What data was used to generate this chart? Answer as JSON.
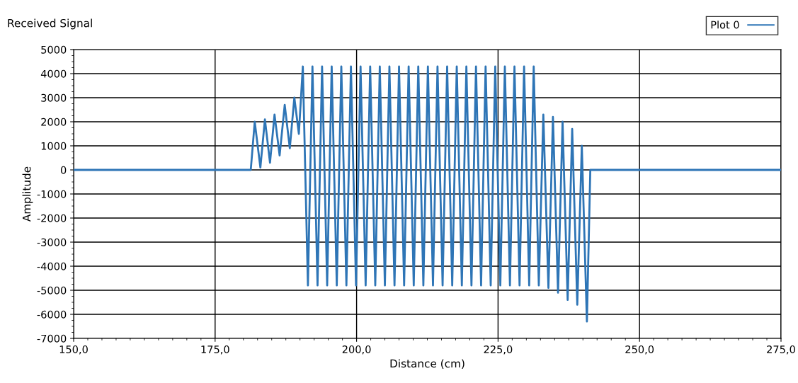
{
  "chart_data": {
    "type": "line",
    "title": "Received Signal",
    "xlabel": "Distance (cm)",
    "ylabel": "Amplitude",
    "xlim": [
      150,
      275
    ],
    "ylim": [
      -7000,
      5000
    ],
    "xticks": [
      {
        "value": 150,
        "label": "150,0"
      },
      {
        "value": 175,
        "label": "175,0"
      },
      {
        "value": 200,
        "label": "200,0"
      },
      {
        "value": 225,
        "label": "225,0"
      },
      {
        "value": 250,
        "label": "250,0"
      },
      {
        "value": 275,
        "label": "275,0"
      }
    ],
    "yticks": [
      -7000,
      -6000,
      -5000,
      -4000,
      -3000,
      -2000,
      -1000,
      0,
      1000,
      2000,
      3000,
      4000,
      5000
    ],
    "grid": true,
    "legend": "top right",
    "marker": "none",
    "line_style": "solid",
    "series": [
      {
        "name": "Plot 0",
        "color": "#2e75b6",
        "x": [
          150,
          181.3,
          182.0,
          183.0,
          183.8,
          184.7,
          185.5,
          186.4,
          187.3,
          188.2,
          189.0,
          189.8,
          190.5,
          191.4,
          192.2,
          193.1,
          193.9,
          194.8,
          195.6,
          196.5,
          197.3,
          198.2,
          199.0,
          199.9,
          200.7,
          201.6,
          202.4,
          203.3,
          204.1,
          205.0,
          205.8,
          206.7,
          207.5,
          208.4,
          209.2,
          210.1,
          210.9,
          211.8,
          212.6,
          213.5,
          214.3,
          215.2,
          216.0,
          216.9,
          217.7,
          218.6,
          219.4,
          220.3,
          221.1,
          222.0,
          222.8,
          223.7,
          224.5,
          225.4,
          226.2,
          227.1,
          227.9,
          228.8,
          229.6,
          230.5,
          231.3,
          232.2,
          233.0,
          233.9,
          234.7,
          235.6,
          236.4,
          237.3,
          238.1,
          239.0,
          239.8,
          240.7,
          241.3,
          275
        ],
        "values": [
          0,
          0,
          2000,
          100,
          2100,
          300,
          2300,
          600,
          2700,
          900,
          3000,
          1500,
          4300,
          -4800,
          4300,
          -4800,
          4300,
          -4800,
          4300,
          -4800,
          4300,
          -4800,
          4300,
          -4800,
          4300,
          -4800,
          4300,
          -4800,
          4300,
          -4800,
          4300,
          -4800,
          4300,
          -4800,
          4300,
          -4800,
          4300,
          -4800,
          4300,
          -4800,
          4300,
          -4800,
          4300,
          -4800,
          4300,
          -4800,
          4300,
          -4800,
          4300,
          -4800,
          4300,
          -4800,
          4300,
          -4800,
          4300,
          -4800,
          4300,
          -4800,
          4300,
          -4800,
          4300,
          -4800,
          2300,
          -4900,
          2200,
          -5100,
          2000,
          -5400,
          1700,
          -5600,
          1000,
          -6300,
          0,
          0
        ]
      }
    ]
  }
}
